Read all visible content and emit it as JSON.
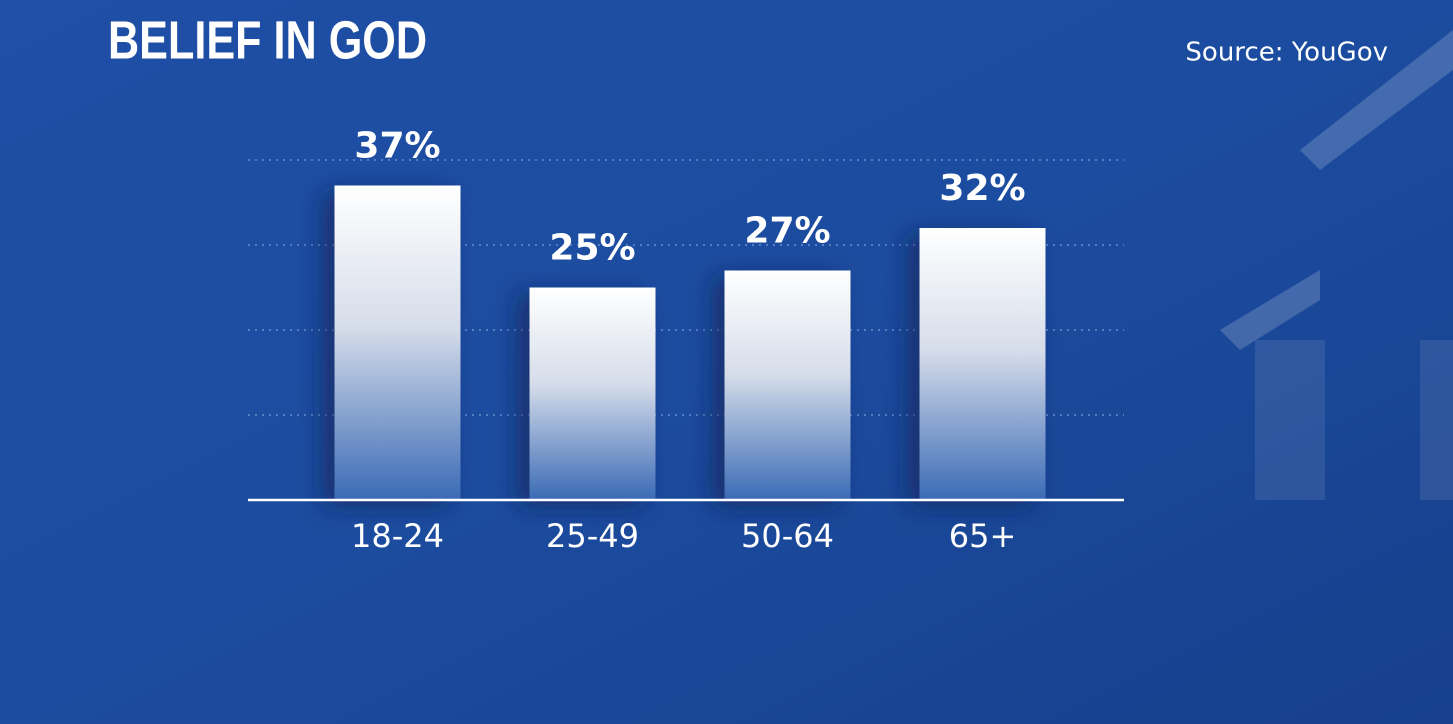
{
  "chart_data": {
    "type": "bar",
    "title": "BELIEF IN GOD",
    "source": "Source: YouGov",
    "categories": [
      "18-24",
      "25-49",
      "50-64",
      "65+"
    ],
    "values": [
      37,
      25,
      27,
      32
    ],
    "value_labels": [
      "37%",
      "25%",
      "27%",
      "32%"
    ],
    "color": "#ffffff",
    "ylim": [
      0,
      40
    ],
    "yticks": [
      0,
      10,
      20,
      30,
      40
    ],
    "grid": true
  }
}
